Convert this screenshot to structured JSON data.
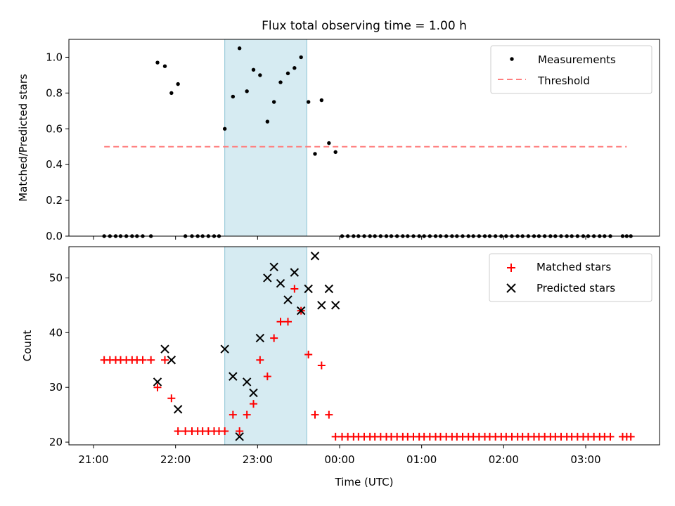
{
  "chart_data": [
    {
      "type": "scatter",
      "title": "Flux total observing time = 1.00 h",
      "ylabel": "Matched/Predicted stars",
      "xlabel": "",
      "xlim_hours": [
        20.7,
        27.9
      ],
      "ylim": [
        0,
        1.1
      ],
      "yticks": [
        0.0,
        0.2,
        0.4,
        0.6,
        0.8,
        1.0
      ],
      "ytick_labels": [
        "0.0",
        "0.2",
        "0.4",
        "0.6",
        "0.8",
        "1.0"
      ],
      "shaded_interval_hours": [
        22.6,
        23.6
      ],
      "threshold": {
        "name": "Threshold",
        "value": 0.5,
        "x_range_hours": [
          21.13,
          27.5
        ],
        "color": "#ff7f7f"
      },
      "legend": {
        "position": "top-right",
        "entries": [
          "Measurements",
          "Threshold"
        ]
      },
      "series": [
        {
          "name": "Measurements",
          "color": "#000000",
          "points": [
            [
              21.13,
              0
            ],
            [
              21.2,
              0
            ],
            [
              21.27,
              0
            ],
            [
              21.33,
              0
            ],
            [
              21.4,
              0
            ],
            [
              21.47,
              0
            ],
            [
              21.53,
              0
            ],
            [
              21.6,
              0
            ],
            [
              21.7,
              0
            ],
            [
              21.78,
              0.97
            ],
            [
              21.87,
              0.95
            ],
            [
              21.95,
              0.8
            ],
            [
              22.03,
              0.85
            ],
            [
              22.12,
              0
            ],
            [
              22.2,
              0
            ],
            [
              22.27,
              0
            ],
            [
              22.33,
              0
            ],
            [
              22.4,
              0
            ],
            [
              22.47,
              0
            ],
            [
              22.53,
              0
            ],
            [
              22.6,
              0.6
            ],
            [
              22.7,
              0.78
            ],
            [
              22.78,
              1.05
            ],
            [
              22.87,
              0.81
            ],
            [
              22.95,
              0.93
            ],
            [
              23.03,
              0.9
            ],
            [
              23.12,
              0.64
            ],
            [
              23.2,
              0.75
            ],
            [
              23.28,
              0.86
            ],
            [
              23.37,
              0.91
            ],
            [
              23.45,
              0.94
            ],
            [
              23.53,
              1.0
            ],
            [
              23.62,
              0.75
            ],
            [
              23.7,
              0.46
            ],
            [
              23.78,
              0.76
            ],
            [
              23.87,
              0.52
            ],
            [
              23.95,
              0.47
            ],
            [
              24.03,
              0
            ],
            [
              24.1,
              0
            ],
            [
              24.17,
              0
            ],
            [
              24.23,
              0
            ],
            [
              24.3,
              0
            ],
            [
              24.37,
              0
            ],
            [
              24.43,
              0
            ],
            [
              24.5,
              0
            ],
            [
              24.57,
              0
            ],
            [
              24.63,
              0
            ],
            [
              24.7,
              0
            ],
            [
              24.77,
              0
            ],
            [
              24.83,
              0
            ],
            [
              24.9,
              0
            ],
            [
              24.97,
              0
            ],
            [
              25.03,
              0
            ],
            [
              25.1,
              0
            ],
            [
              25.17,
              0
            ],
            [
              25.23,
              0
            ],
            [
              25.3,
              0
            ],
            [
              25.37,
              0
            ],
            [
              25.43,
              0
            ],
            [
              25.5,
              0
            ],
            [
              25.57,
              0
            ],
            [
              25.63,
              0
            ],
            [
              25.7,
              0
            ],
            [
              25.77,
              0
            ],
            [
              25.83,
              0
            ],
            [
              25.9,
              0
            ],
            [
              25.97,
              0
            ],
            [
              26.03,
              0
            ],
            [
              26.1,
              0
            ],
            [
              26.17,
              0
            ],
            [
              26.23,
              0
            ],
            [
              26.3,
              0
            ],
            [
              26.37,
              0
            ],
            [
              26.43,
              0
            ],
            [
              26.5,
              0
            ],
            [
              26.57,
              0
            ],
            [
              26.63,
              0
            ],
            [
              26.7,
              0
            ],
            [
              26.77,
              0
            ],
            [
              26.83,
              0
            ],
            [
              26.9,
              0
            ],
            [
              26.97,
              0
            ],
            [
              27.03,
              0
            ],
            [
              27.1,
              0
            ],
            [
              27.17,
              0
            ],
            [
              27.23,
              0
            ],
            [
              27.3,
              0
            ],
            [
              27.45,
              0
            ],
            [
              27.5,
              0
            ],
            [
              27.55,
              0
            ]
          ]
        }
      ]
    },
    {
      "type": "scatter",
      "title": "",
      "ylabel": "Count",
      "xlabel": "Time (UTC)",
      "xlim_hours": [
        20.7,
        27.9
      ],
      "ylim": [
        19.5,
        55.7
      ],
      "yticks": [
        20,
        30,
        40,
        50
      ],
      "ytick_labels": [
        "20",
        "30",
        "40",
        "50"
      ],
      "xticks_hours": [
        21,
        22,
        23,
        24,
        25,
        26,
        27
      ],
      "xtick_labels": [
        "21:00",
        "22:00",
        "23:00",
        "00:00",
        "01:00",
        "02:00",
        "03:00"
      ],
      "shaded_interval_hours": [
        22.6,
        23.6
      ],
      "legend": {
        "position": "top-right",
        "entries": [
          "Matched stars",
          "Predicted stars"
        ]
      },
      "series": [
        {
          "name": "Matched stars",
          "marker": "plus",
          "color": "#ff0000",
          "points": [
            [
              21.13,
              35
            ],
            [
              21.2,
              35
            ],
            [
              21.27,
              35
            ],
            [
              21.33,
              35
            ],
            [
              21.4,
              35
            ],
            [
              21.47,
              35
            ],
            [
              21.53,
              35
            ],
            [
              21.6,
              35
            ],
            [
              21.7,
              35
            ],
            [
              21.78,
              30
            ],
            [
              21.87,
              35
            ],
            [
              21.95,
              28
            ],
            [
              22.03,
              22
            ],
            [
              22.12,
              22
            ],
            [
              22.2,
              22
            ],
            [
              22.27,
              22
            ],
            [
              22.33,
              22
            ],
            [
              22.4,
              22
            ],
            [
              22.47,
              22
            ],
            [
              22.53,
              22
            ],
            [
              22.6,
              22
            ],
            [
              22.7,
              25
            ],
            [
              22.78,
              22
            ],
            [
              22.87,
              25
            ],
            [
              22.95,
              27
            ],
            [
              23.03,
              35
            ],
            [
              23.12,
              32
            ],
            [
              23.2,
              39
            ],
            [
              23.28,
              42
            ],
            [
              23.37,
              42
            ],
            [
              23.45,
              48
            ],
            [
              23.53,
              44
            ],
            [
              23.62,
              36
            ],
            [
              23.7,
              25
            ],
            [
              23.78,
              34
            ],
            [
              23.87,
              25
            ],
            [
              23.95,
              21
            ],
            [
              24.03,
              21
            ],
            [
              24.1,
              21
            ],
            [
              24.17,
              21
            ],
            [
              24.23,
              21
            ],
            [
              24.3,
              21
            ],
            [
              24.37,
              21
            ],
            [
              24.43,
              21
            ],
            [
              24.5,
              21
            ],
            [
              24.57,
              21
            ],
            [
              24.63,
              21
            ],
            [
              24.7,
              21
            ],
            [
              24.77,
              21
            ],
            [
              24.83,
              21
            ],
            [
              24.9,
              21
            ],
            [
              24.97,
              21
            ],
            [
              25.03,
              21
            ],
            [
              25.1,
              21
            ],
            [
              25.17,
              21
            ],
            [
              25.23,
              21
            ],
            [
              25.3,
              21
            ],
            [
              25.37,
              21
            ],
            [
              25.43,
              21
            ],
            [
              25.5,
              21
            ],
            [
              25.57,
              21
            ],
            [
              25.63,
              21
            ],
            [
              25.7,
              21
            ],
            [
              25.77,
              21
            ],
            [
              25.83,
              21
            ],
            [
              25.9,
              21
            ],
            [
              25.97,
              21
            ],
            [
              26.03,
              21
            ],
            [
              26.1,
              21
            ],
            [
              26.17,
              21
            ],
            [
              26.23,
              21
            ],
            [
              26.3,
              21
            ],
            [
              26.37,
              21
            ],
            [
              26.43,
              21
            ],
            [
              26.5,
              21
            ],
            [
              26.57,
              21
            ],
            [
              26.63,
              21
            ],
            [
              26.7,
              21
            ],
            [
              26.77,
              21
            ],
            [
              26.83,
              21
            ],
            [
              26.9,
              21
            ],
            [
              26.97,
              21
            ],
            [
              27.03,
              21
            ],
            [
              27.1,
              21
            ],
            [
              27.17,
              21
            ],
            [
              27.23,
              21
            ],
            [
              27.3,
              21
            ],
            [
              27.45,
              21
            ],
            [
              27.5,
              21
            ],
            [
              27.55,
              21
            ]
          ]
        },
        {
          "name": "Predicted stars",
          "marker": "x",
          "color": "#000000",
          "points": [
            [
              21.78,
              31
            ],
            [
              21.87,
              37
            ],
            [
              21.95,
              35
            ],
            [
              22.03,
              26
            ],
            [
              22.6,
              37
            ],
            [
              22.7,
              32
            ],
            [
              22.78,
              21
            ],
            [
              22.87,
              31
            ],
            [
              22.95,
              29
            ],
            [
              23.03,
              39
            ],
            [
              23.12,
              50
            ],
            [
              23.2,
              52
            ],
            [
              23.28,
              49
            ],
            [
              23.37,
              46
            ],
            [
              23.45,
              51
            ],
            [
              23.53,
              44
            ],
            [
              23.62,
              48
            ],
            [
              23.7,
              54
            ],
            [
              23.78,
              45
            ],
            [
              23.87,
              48
            ],
            [
              23.95,
              45
            ]
          ]
        }
      ]
    }
  ]
}
